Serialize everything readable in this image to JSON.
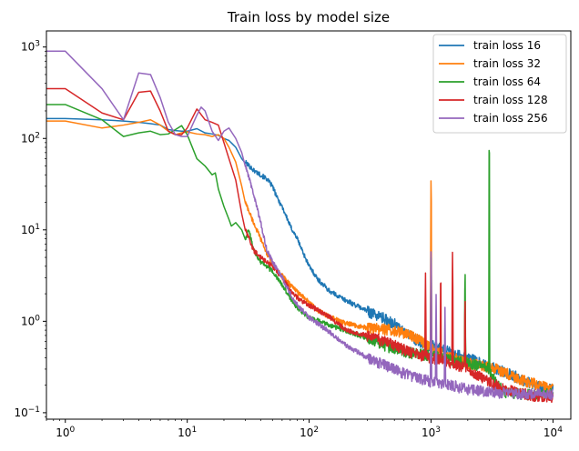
{
  "chart_data": {
    "type": "line",
    "title": "Train loss by model size",
    "xlabel": "",
    "ylabel": "",
    "xscale": "log",
    "yscale": "log",
    "xlim": [
      0.7,
      14000
    ],
    "ylim": [
      0.085,
      1500
    ],
    "x_ticks": [
      {
        "value": 1,
        "base": "10",
        "exp": "0"
      },
      {
        "value": 10,
        "base": "10",
        "exp": "1"
      },
      {
        "value": 100,
        "base": "10",
        "exp": "2"
      },
      {
        "value": 1000,
        "base": "10",
        "exp": "3"
      },
      {
        "value": 10000,
        "base": "10",
        "exp": "4"
      }
    ],
    "y_ticks": [
      {
        "value": 0.1,
        "base": "10",
        "exp": "−1"
      },
      {
        "value": 1,
        "base": "10",
        "exp": "0"
      },
      {
        "value": 10,
        "base": "10",
        "exp": "1"
      },
      {
        "value": 100,
        "base": "10",
        "exp": "2"
      },
      {
        "value": 1000,
        "base": "10",
        "exp": "3"
      }
    ],
    "grid": false,
    "legend": "top-right",
    "series": [
      {
        "name": "train loss 16",
        "color": "#1f77b4",
        "points": [
          [
            0.7,
            165
          ],
          [
            1,
            165
          ],
          [
            2,
            160
          ],
          [
            3,
            155
          ],
          [
            4,
            150
          ],
          [
            5,
            145
          ],
          [
            6,
            140
          ],
          [
            7,
            125
          ],
          [
            8,
            122
          ],
          [
            9,
            120
          ],
          [
            10,
            120
          ],
          [
            12,
            128
          ],
          [
            14,
            115
          ],
          [
            16,
            112
          ],
          [
            18,
            108
          ],
          [
            20,
            100
          ],
          [
            22,
            95
          ],
          [
            25,
            80
          ],
          [
            28,
            60
          ],
          [
            30,
            55
          ],
          [
            35,
            45
          ],
          [
            40,
            40
          ],
          [
            45,
            36
          ],
          [
            50,
            30
          ],
          [
            55,
            22
          ],
          [
            60,
            18
          ],
          [
            65,
            14
          ],
          [
            70,
            11
          ],
          [
            80,
            8
          ],
          [
            90,
            5.5
          ],
          [
            100,
            4
          ],
          [
            120,
            2.8
          ],
          [
            150,
            2.1
          ],
          [
            200,
            1.7
          ],
          [
            300,
            1.3
          ],
          [
            400,
            1.1
          ],
          [
            500,
            0.95
          ],
          [
            600,
            0.75
          ],
          [
            700,
            0.68
          ],
          [
            800,
            0.6
          ],
          [
            1000,
            0.55
          ],
          [
            1200,
            0.5
          ],
          [
            1500,
            0.45
          ],
          [
            2000,
            0.4
          ],
          [
            3000,
            0.32
          ],
          [
            4000,
            0.28
          ],
          [
            5000,
            0.25
          ],
          [
            6000,
            0.22
          ],
          [
            8000,
            0.19
          ],
          [
            10000,
            0.18
          ]
        ],
        "spikes": []
      },
      {
        "name": "train loss 32",
        "color": "#ff7f0e",
        "points": [
          [
            0.7,
            155
          ],
          [
            1,
            155
          ],
          [
            2,
            130
          ],
          [
            3,
            140
          ],
          [
            4,
            150
          ],
          [
            5,
            160
          ],
          [
            6,
            140
          ],
          [
            7,
            120
          ],
          [
            8,
            110
          ],
          [
            9,
            115
          ],
          [
            10,
            118
          ],
          [
            12,
            112
          ],
          [
            14,
            110
          ],
          [
            16,
            105
          ],
          [
            18,
            110
          ],
          [
            20,
            100
          ],
          [
            22,
            80
          ],
          [
            25,
            55
          ],
          [
            28,
            30
          ],
          [
            30,
            20
          ],
          [
            35,
            12
          ],
          [
            40,
            8
          ],
          [
            45,
            5.5
          ],
          [
            50,
            4.2
          ],
          [
            60,
            3.2
          ],
          [
            70,
            2.5
          ],
          [
            80,
            2.1
          ],
          [
            100,
            1.6
          ],
          [
            120,
            1.3
          ],
          [
            150,
            1.1
          ],
          [
            200,
            0.95
          ],
          [
            300,
            0.85
          ],
          [
            500,
            0.8
          ],
          [
            700,
            0.7
          ],
          [
            900,
            0.58
          ],
          [
            1000,
            0.5
          ],
          [
            1200,
            0.45
          ],
          [
            1500,
            0.4
          ],
          [
            2000,
            0.35
          ],
          [
            3000,
            0.32
          ],
          [
            4000,
            0.28
          ],
          [
            6000,
            0.22
          ],
          [
            8000,
            0.2
          ],
          [
            10000,
            0.18
          ]
        ],
        "spikes": [
          [
            1000,
            42
          ]
        ]
      },
      {
        "name": "train loss 64",
        "color": "#2ca02c",
        "points": [
          [
            0.7,
            235
          ],
          [
            1,
            235
          ],
          [
            2,
            160
          ],
          [
            3,
            105
          ],
          [
            4,
            115
          ],
          [
            5,
            120
          ],
          [
            6,
            110
          ],
          [
            7,
            112
          ],
          [
            8,
            125
          ],
          [
            9,
            138
          ],
          [
            10,
            110
          ],
          [
            12,
            60
          ],
          [
            14,
            50
          ],
          [
            16,
            40
          ],
          [
            17,
            42
          ],
          [
            18,
            28
          ],
          [
            20,
            18
          ],
          [
            22,
            13
          ],
          [
            23,
            11
          ],
          [
            25,
            12
          ],
          [
            28,
            10
          ],
          [
            30,
            8
          ],
          [
            32,
            10
          ],
          [
            35,
            6
          ],
          [
            40,
            4.5
          ],
          [
            45,
            4
          ],
          [
            50,
            3.5
          ],
          [
            60,
            2.5
          ],
          [
            70,
            1.8
          ],
          [
            80,
            1.4
          ],
          [
            100,
            1.1
          ],
          [
            150,
            0.9
          ],
          [
            200,
            0.8
          ],
          [
            300,
            0.65
          ],
          [
            500,
            0.5
          ],
          [
            700,
            0.45
          ],
          [
            1000,
            0.42
          ],
          [
            1500,
            0.38
          ],
          [
            2000,
            0.35
          ],
          [
            2500,
            0.33
          ],
          [
            3000,
            0.3
          ],
          [
            3500,
            0.2
          ],
          [
            4000,
            0.17
          ],
          [
            6000,
            0.16
          ],
          [
            8000,
            0.16
          ],
          [
            10000,
            0.16
          ]
        ],
        "spikes": [
          [
            1000,
            6
          ],
          [
            1900,
            4
          ],
          [
            3000,
            110
          ]
        ]
      },
      {
        "name": "train loss 128",
        "color": "#d62728",
        "points": [
          [
            0.7,
            350
          ],
          [
            1,
            350
          ],
          [
            2,
            190
          ],
          [
            3,
            160
          ],
          [
            4,
            320
          ],
          [
            5,
            330
          ],
          [
            6,
            200
          ],
          [
            7,
            120
          ],
          [
            8,
            110
          ],
          [
            9,
            110
          ],
          [
            10,
            130
          ],
          [
            12,
            210
          ],
          [
            14,
            160
          ],
          [
            16,
            150
          ],
          [
            18,
            140
          ],
          [
            20,
            90
          ],
          [
            22,
            60
          ],
          [
            25,
            35
          ],
          [
            28,
            15
          ],
          [
            30,
            10
          ],
          [
            35,
            6
          ],
          [
            40,
            5
          ],
          [
            45,
            4.5
          ],
          [
            50,
            4
          ],
          [
            60,
            3
          ],
          [
            70,
            2.2
          ],
          [
            80,
            1.8
          ],
          [
            100,
            1.5
          ],
          [
            150,
            1.1
          ],
          [
            200,
            0.8
          ],
          [
            300,
            0.7
          ],
          [
            500,
            0.55
          ],
          [
            700,
            0.45
          ],
          [
            1000,
            0.4
          ],
          [
            1500,
            0.35
          ],
          [
            2000,
            0.3
          ],
          [
            3000,
            0.22
          ],
          [
            4000,
            0.18
          ],
          [
            6000,
            0.16
          ],
          [
            8000,
            0.15
          ],
          [
            10000,
            0.15
          ]
        ],
        "spikes": [
          [
            900,
            3.5
          ],
          [
            1000,
            5
          ],
          [
            1200,
            3.8
          ],
          [
            1500,
            6
          ],
          [
            1900,
            2
          ]
        ]
      },
      {
        "name": "train loss 256",
        "color": "#9467bd",
        "points": [
          [
            0.7,
            900
          ],
          [
            1,
            900
          ],
          [
            2,
            350
          ],
          [
            3,
            160
          ],
          [
            4,
            520
          ],
          [
            5,
            500
          ],
          [
            6,
            280
          ],
          [
            7,
            150
          ],
          [
            8,
            110
          ],
          [
            9,
            105
          ],
          [
            10,
            105
          ],
          [
            12,
            180
          ],
          [
            13,
            220
          ],
          [
            14,
            200
          ],
          [
            16,
            120
          ],
          [
            18,
            95
          ],
          [
            20,
            120
          ],
          [
            22,
            130
          ],
          [
            25,
            100
          ],
          [
            28,
            70
          ],
          [
            30,
            50
          ],
          [
            35,
            25
          ],
          [
            40,
            12
          ],
          [
            45,
            6
          ],
          [
            50,
            4.5
          ],
          [
            60,
            3
          ],
          [
            70,
            2
          ],
          [
            80,
            1.5
          ],
          [
            100,
            1.1
          ],
          [
            150,
            0.75
          ],
          [
            200,
            0.55
          ],
          [
            300,
            0.4
          ],
          [
            500,
            0.3
          ],
          [
            700,
            0.25
          ],
          [
            1000,
            0.22
          ],
          [
            1500,
            0.2
          ],
          [
            2000,
            0.18
          ],
          [
            3000,
            0.17
          ],
          [
            5000,
            0.16
          ],
          [
            8000,
            0.16
          ],
          [
            10000,
            0.16
          ]
        ],
        "spikes": [
          [
            1000,
            7
          ],
          [
            1100,
            2
          ],
          [
            1300,
            1.5
          ]
        ]
      }
    ]
  }
}
